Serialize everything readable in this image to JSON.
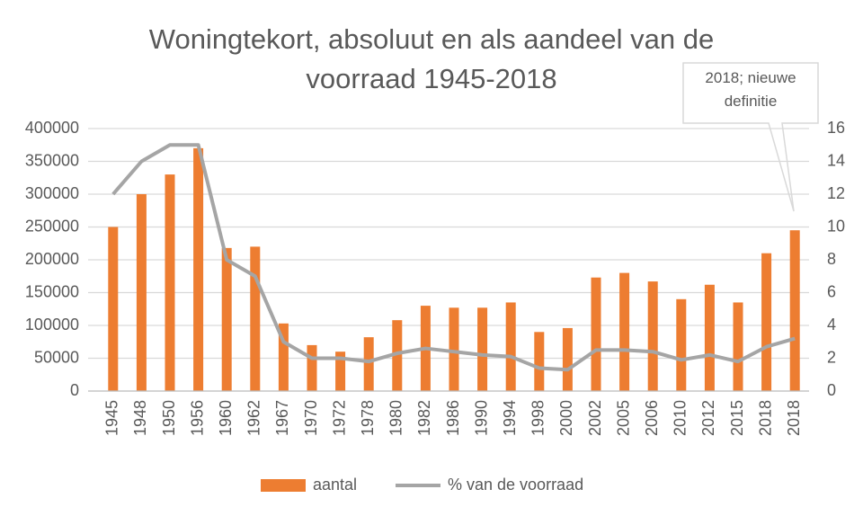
{
  "chart_data": {
    "type": "bar",
    "title": "Woningtekort, absoluut en als aandeel van de voorraad 1945-2018",
    "annotation": "2018; nieuwe definitie",
    "categories": [
      "1945",
      "1948",
      "1950",
      "1956",
      "1960",
      "1962",
      "1967",
      "1970",
      "1972",
      "1978",
      "1980",
      "1982",
      "1986",
      "1990",
      "1994",
      "1998",
      "2000",
      "2002",
      "2005",
      "2006",
      "2010",
      "2012",
      "2015",
      "2018",
      "2018"
    ],
    "series": [
      {
        "name": "aantal",
        "type": "bar",
        "color": "#ed7d31",
        "values": [
          250000,
          300000,
          330000,
          370000,
          218000,
          220000,
          103000,
          70000,
          60000,
          82000,
          108000,
          130000,
          127000,
          127000,
          135000,
          90000,
          96000,
          173000,
          180000,
          167000,
          140000,
          162000,
          135000,
          210000,
          245000
        ]
      },
      {
        "name": "% van de voorraad",
        "type": "line",
        "axis": "y2",
        "color": "#a5a5a5",
        "values": [
          12,
          14,
          15,
          15,
          8,
          7,
          3,
          2,
          2,
          1.8,
          2.3,
          2.6,
          2.4,
          2.2,
          2.1,
          1.4,
          1.3,
          2.5,
          2.5,
          2.4,
          1.9,
          2.2,
          1.8,
          2.7,
          3.2
        ]
      }
    ],
    "ylim": [
      0,
      400000
    ],
    "yticks": [
      0,
      50000,
      100000,
      150000,
      200000,
      250000,
      300000,
      350000,
      400000
    ],
    "y2lim": [
      0,
      16
    ],
    "y2ticks": [
      0,
      2,
      4,
      6,
      8,
      10,
      12,
      14,
      16
    ],
    "grid": true,
    "legend": "bottom"
  }
}
